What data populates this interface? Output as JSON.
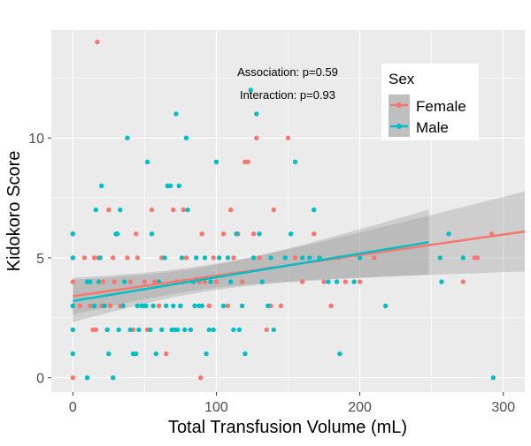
{
  "chart_data": {
    "type": "scatter",
    "title": "",
    "xlabel": "Total Transfusion Volume (mL)",
    "ylabel": "Kidokoro Score",
    "xlim": [
      -15,
      315
    ],
    "ylim": [
      -0.6,
      14.5
    ],
    "x_ticks": [
      0,
      100,
      200,
      300
    ],
    "y_ticks": [
      0,
      5,
      10
    ],
    "grid": true,
    "legend": {
      "title": "Sex",
      "placement": "top-right",
      "entries": [
        "Female",
        "Male"
      ]
    },
    "annotations": [
      "Association: p=0.59",
      "Interaction: p=0.93"
    ],
    "colors": {
      "Female": "#f8766d",
      "Male": "#00bfc4",
      "panel": "#ebebeb",
      "ribbon": "#999999"
    },
    "series": [
      {
        "name": "Female",
        "points": [
          [
            0,
            6
          ],
          [
            0,
            5
          ],
          [
            0,
            4
          ],
          [
            0,
            3
          ],
          [
            0,
            2
          ],
          [
            0,
            0
          ],
          [
            5,
            3
          ],
          [
            8,
            5
          ],
          [
            10,
            4
          ],
          [
            12,
            3
          ],
          [
            14,
            2
          ],
          [
            15,
            5
          ],
          [
            16,
            2
          ],
          [
            17,
            14
          ],
          [
            18,
            5
          ],
          [
            20,
            3
          ],
          [
            21,
            4
          ],
          [
            22,
            3
          ],
          [
            24,
            2
          ],
          [
            25,
            7
          ],
          [
            26,
            3
          ],
          [
            28,
            5
          ],
          [
            29,
            4
          ],
          [
            31,
            6
          ],
          [
            33,
            3
          ],
          [
            35,
            3
          ],
          [
            38,
            5
          ],
          [
            40,
            4
          ],
          [
            42,
            2
          ],
          [
            44,
            6
          ],
          [
            45,
            5
          ],
          [
            48,
            3
          ],
          [
            50,
            4
          ],
          [
            52,
            2
          ],
          [
            55,
            7
          ],
          [
            57,
            4
          ],
          [
            60,
            3
          ],
          [
            62,
            5
          ],
          [
            65,
            1
          ],
          [
            70,
            7
          ],
          [
            72,
            4
          ],
          [
            75,
            3
          ],
          [
            77,
            7
          ],
          [
            79,
            5
          ],
          [
            82,
            2
          ],
          [
            85,
            3
          ],
          [
            88,
            4
          ],
          [
            89,
            0
          ],
          [
            90,
            6
          ],
          [
            92,
            4
          ],
          [
            95,
            3
          ],
          [
            98,
            5
          ],
          [
            100,
            4
          ],
          [
            105,
            6
          ],
          [
            108,
            3
          ],
          [
            110,
            7
          ],
          [
            112,
            5
          ],
          [
            115,
            6
          ],
          [
            118,
            4
          ],
          [
            120,
            9
          ],
          [
            122,
            9
          ],
          [
            126,
            6
          ],
          [
            128,
            10
          ],
          [
            130,
            5
          ],
          [
            135,
            2
          ],
          [
            138,
            3
          ],
          [
            140,
            7
          ],
          [
            145,
            3
          ],
          [
            150,
            10
          ],
          [
            155,
            5
          ],
          [
            160,
            4
          ],
          [
            168,
            6
          ],
          [
            175,
            4
          ],
          [
            180,
            3
          ],
          [
            185,
            5
          ],
          [
            190,
            4
          ],
          [
            200,
            4
          ],
          [
            210,
            5
          ],
          [
            272,
            4
          ],
          [
            280,
            5
          ],
          [
            282,
            5
          ],
          [
            292,
            6
          ]
        ],
        "fit": {
          "x": [
            0,
            315
          ],
          "y": [
            3.4,
            6.1
          ]
        }
      },
      {
        "name": "Male",
        "points": [
          [
            0,
            6
          ],
          [
            0,
            5
          ],
          [
            0,
            3
          ],
          [
            0,
            2
          ],
          [
            0,
            1
          ],
          [
            10,
            0
          ],
          [
            10,
            4
          ],
          [
            12,
            4
          ],
          [
            15,
            3
          ],
          [
            16,
            7
          ],
          [
            18,
            4
          ],
          [
            19,
            5
          ],
          [
            20,
            8
          ],
          [
            22,
            3
          ],
          [
            24,
            2
          ],
          [
            25,
            1
          ],
          [
            28,
            0
          ],
          [
            30,
            6
          ],
          [
            31,
            6
          ],
          [
            32,
            2
          ],
          [
            33,
            7
          ],
          [
            35,
            3
          ],
          [
            36,
            4
          ],
          [
            38,
            10
          ],
          [
            40,
            2
          ],
          [
            42,
            1
          ],
          [
            44,
            1
          ],
          [
            45,
            3
          ],
          [
            46,
            2
          ],
          [
            48,
            3
          ],
          [
            50,
            3
          ],
          [
            51,
            3
          ],
          [
            52,
            9
          ],
          [
            54,
            2
          ],
          [
            55,
            6
          ],
          [
            56,
            3
          ],
          [
            58,
            1
          ],
          [
            60,
            4
          ],
          [
            62,
            2
          ],
          [
            64,
            5
          ],
          [
            65,
            3
          ],
          [
            66,
            8
          ],
          [
            68,
            8
          ],
          [
            69,
            2
          ],
          [
            70,
            3
          ],
          [
            71,
            2
          ],
          [
            72,
            11
          ],
          [
            73,
            2
          ],
          [
            74,
            8
          ],
          [
            75,
            3
          ],
          [
            76,
            5
          ],
          [
            78,
            2
          ],
          [
            79,
            10
          ],
          [
            80,
            7
          ],
          [
            82,
            2
          ],
          [
            84,
            4
          ],
          [
            85,
            3
          ],
          [
            86,
            5
          ],
          [
            88,
            3
          ],
          [
            90,
            3
          ],
          [
            92,
            5
          ],
          [
            93,
            1
          ],
          [
            95,
            2
          ],
          [
            96,
            4
          ],
          [
            98,
            2
          ],
          [
            100,
            9
          ],
          [
            102,
            5
          ],
          [
            105,
            3
          ],
          [
            108,
            5
          ],
          [
            110,
            4
          ],
          [
            112,
            2
          ],
          [
            114,
            6
          ],
          [
            116,
            2
          ],
          [
            118,
            3
          ],
          [
            120,
            1
          ],
          [
            124,
            12
          ],
          [
            126,
            5
          ],
          [
            128,
            11
          ],
          [
            130,
            6
          ],
          [
            132,
            4
          ],
          [
            136,
            3
          ],
          [
            138,
            5
          ],
          [
            140,
            2
          ],
          [
            148,
            5
          ],
          [
            152,
            6
          ],
          [
            155,
            9
          ],
          [
            160,
            5
          ],
          [
            165,
            5
          ],
          [
            168,
            7
          ],
          [
            172,
            5
          ],
          [
            178,
            4
          ],
          [
            184,
            4
          ],
          [
            186,
            1
          ],
          [
            196,
            4
          ],
          [
            200,
            5
          ],
          [
            218,
            3
          ],
          [
            256,
            5
          ],
          [
            257,
            4
          ],
          [
            262,
            6
          ],
          [
            272,
            5
          ],
          [
            293,
            0
          ]
        ],
        "fit": {
          "x": [
            0,
            248
          ],
          "y": [
            3.2,
            5.65
          ]
        }
      }
    ]
  }
}
